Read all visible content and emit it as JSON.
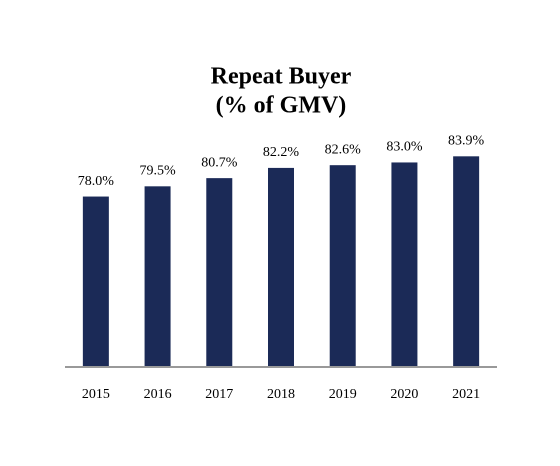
{
  "chart_data": {
    "type": "bar",
    "title": "Repeat Buyer",
    "subtitle": "(% of GMV)",
    "categories": [
      "2015",
      "2016",
      "2017",
      "2018",
      "2019",
      "2020",
      "2021"
    ],
    "values": [
      78.0,
      79.5,
      80.7,
      82.2,
      82.6,
      83.0,
      83.9
    ],
    "value_labels": [
      "78.0%",
      "79.5%",
      "80.7%",
      "82.2%",
      "82.6%",
      "83.0%",
      "83.9%"
    ],
    "color": "#1b2a57",
    "ylim": [
      53,
      86
    ]
  }
}
